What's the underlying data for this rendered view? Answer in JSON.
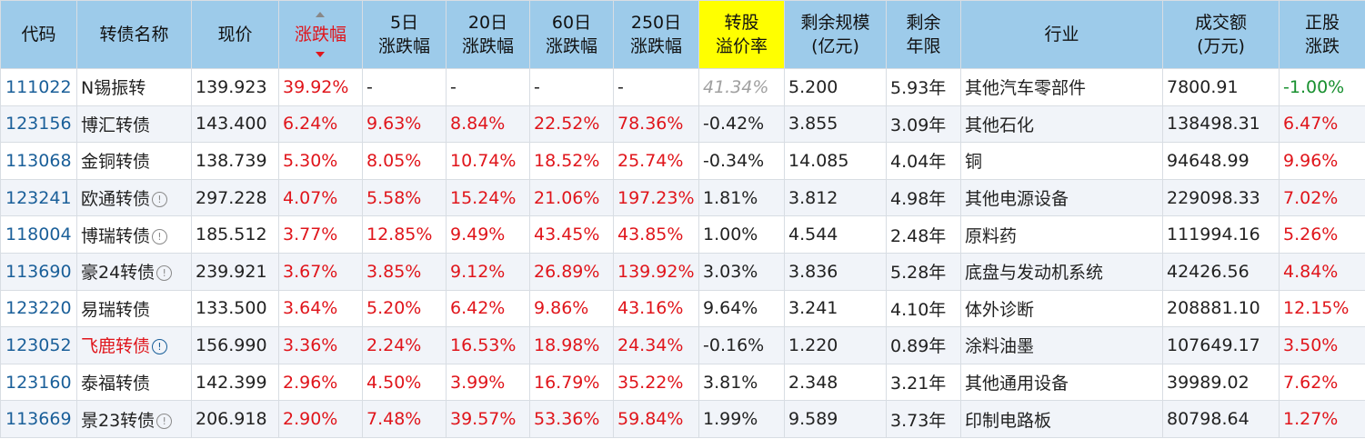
{
  "headers": {
    "code": "代码",
    "name": "转债名称",
    "price": "现价",
    "chg": "涨跌幅",
    "d5_l1": "5日",
    "d5_l2": "涨跌幅",
    "d20_l1": "20日",
    "d20_l2": "涨跌幅",
    "d60_l1": "60日",
    "d60_l2": "涨跌幅",
    "d250_l1": "250日",
    "d250_l2": "涨跌幅",
    "premium_l1": "转股",
    "premium_l2": "溢价率",
    "scale_l1": "剩余规模",
    "scale_l2": "(亿元)",
    "years_l1": "剩余",
    "years_l2": "年限",
    "industry": "行业",
    "volume_l1": "成交额",
    "volume_l2": "(万元)",
    "stock_l1": "正股",
    "stock_l2": "涨跌"
  },
  "rows": [
    {
      "code": "111022",
      "name": "N锡振转",
      "price": "139.923",
      "chg": "39.92%",
      "d5": "-",
      "d20": "-",
      "d60": "-",
      "d250": "-",
      "premium": "41.34%",
      "scale": "5.200",
      "years": "5.93年",
      "industry": "其他汽车零部件",
      "volume": "7800.91",
      "stock": "-1.00%"
    },
    {
      "code": "123156",
      "name": "博汇转债",
      "price": "143.400",
      "chg": "6.24%",
      "d5": "9.63%",
      "d20": "8.84%",
      "d60": "22.52%",
      "d250": "78.36%",
      "premium": "-0.42%",
      "scale": "3.855",
      "years": "3.09年",
      "industry": "其他石化",
      "volume": "138498.31",
      "stock": "6.47%"
    },
    {
      "code": "113068",
      "name": "金铜转债",
      "price": "138.739",
      "chg": "5.30%",
      "d5": "8.05%",
      "d20": "10.74%",
      "d60": "18.52%",
      "d250": "25.74%",
      "premium": "-0.34%",
      "scale": "14.085",
      "years": "4.04年",
      "industry": "铜",
      "volume": "94648.99",
      "stock": "9.96%"
    },
    {
      "code": "123241",
      "name": "欧通转债",
      "price": "297.228",
      "chg": "4.07%",
      "d5": "5.58%",
      "d20": "15.24%",
      "d60": "21.06%",
      "d250": "197.23%",
      "premium": "1.81%",
      "scale": "3.812",
      "years": "4.98年",
      "industry": "其他电源设备",
      "volume": "229098.33",
      "stock": "7.02%"
    },
    {
      "code": "118004",
      "name": "博瑞转债",
      "price": "185.512",
      "chg": "3.77%",
      "d5": "12.85%",
      "d20": "9.49%",
      "d60": "43.45%",
      "d250": "43.85%",
      "premium": "1.00%",
      "scale": "4.544",
      "years": "2.48年",
      "industry": "原料药",
      "volume": "111994.16",
      "stock": "5.26%"
    },
    {
      "code": "113690",
      "name": "豪24转债",
      "price": "239.921",
      "chg": "3.67%",
      "d5": "3.85%",
      "d20": "9.12%",
      "d60": "26.89%",
      "d250": "139.92%",
      "premium": "3.03%",
      "scale": "3.836",
      "years": "5.28年",
      "industry": "底盘与发动机系统",
      "volume": "42426.56",
      "stock": "4.84%"
    },
    {
      "code": "123220",
      "name": "易瑞转债",
      "price": "133.500",
      "chg": "3.64%",
      "d5": "5.20%",
      "d20": "6.42%",
      "d60": "9.86%",
      "d250": "43.16%",
      "premium": "9.64%",
      "scale": "3.241",
      "years": "4.10年",
      "industry": "体外诊断",
      "volume": "208881.10",
      "stock": "12.15%"
    },
    {
      "code": "123052",
      "name": "飞鹿转债",
      "price": "156.990",
      "chg": "3.36%",
      "d5": "2.24%",
      "d20": "16.53%",
      "d60": "18.98%",
      "d250": "24.34%",
      "premium": "-0.16%",
      "scale": "1.220",
      "years": "0.89年",
      "industry": "涂料油墨",
      "volume": "107649.17",
      "stock": "3.50%"
    },
    {
      "code": "123160",
      "name": "泰福转债",
      "price": "142.399",
      "chg": "2.96%",
      "d5": "4.50%",
      "d20": "3.99%",
      "d60": "16.79%",
      "d250": "35.22%",
      "premium": "3.81%",
      "scale": "2.348",
      "years": "3.21年",
      "industry": "其他通用设备",
      "volume": "39989.02",
      "stock": "7.62%"
    },
    {
      "code": "113669",
      "name": "景23转债",
      "price": "206.918",
      "chg": "2.90%",
      "d5": "7.48%",
      "d20": "39.57%",
      "d60": "53.36%",
      "d250": "59.84%",
      "premium": "1.99%",
      "scale": "9.589",
      "years": "3.73年",
      "industry": "印制电路板",
      "volume": "80798.64",
      "stock": "1.27%"
    }
  ],
  "info_icon_glyph": "!"
}
